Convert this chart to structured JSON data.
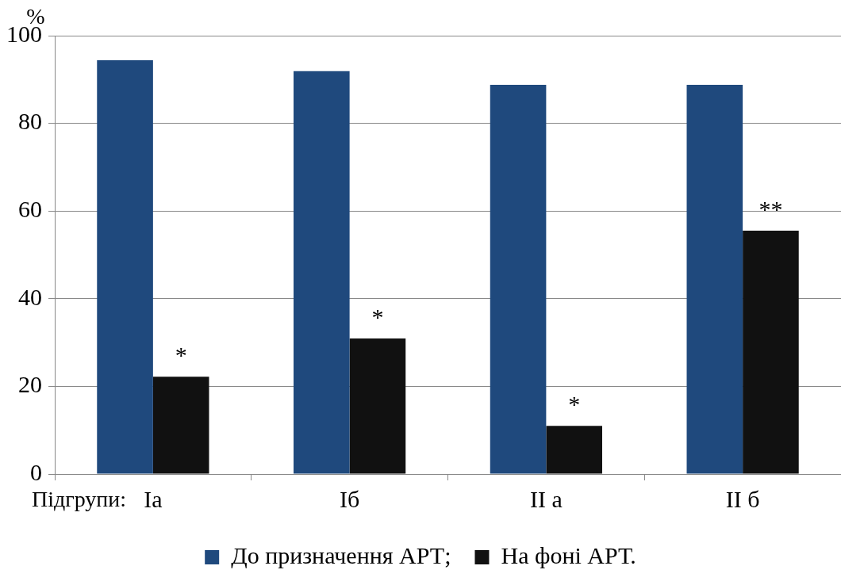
{
  "chart_data": {
    "type": "bar",
    "ylabel": "%",
    "xlabel": "Підгрупи:",
    "categories": [
      "Ia",
      "Iб",
      "II а",
      "II б"
    ],
    "series": [
      {
        "name": "До призначення АРТ;",
        "color": "#1f497d",
        "values": [
          94.4,
          91.9,
          88.8,
          88.8
        ]
      },
      {
        "name": "На фоні АРТ.",
        "color": "#111111",
        "values": [
          22.2,
          30.9,
          11.0,
          55.5
        ]
      }
    ],
    "ylim": [
      0,
      100
    ],
    "yticks": [
      0,
      20,
      40,
      60,
      80,
      100
    ],
    "grid": "y",
    "legend": "bottom",
    "annotations": [
      {
        "text": "*",
        "x": "Ia",
        "y": 22.2
      },
      {
        "text": "*",
        "x": "Iб",
        "y": 30.9
      },
      {
        "text": "*",
        "x": "II а",
        "y": 11.0
      },
      {
        "text": "**",
        "x": "II б",
        "y": 55.5
      }
    ]
  }
}
